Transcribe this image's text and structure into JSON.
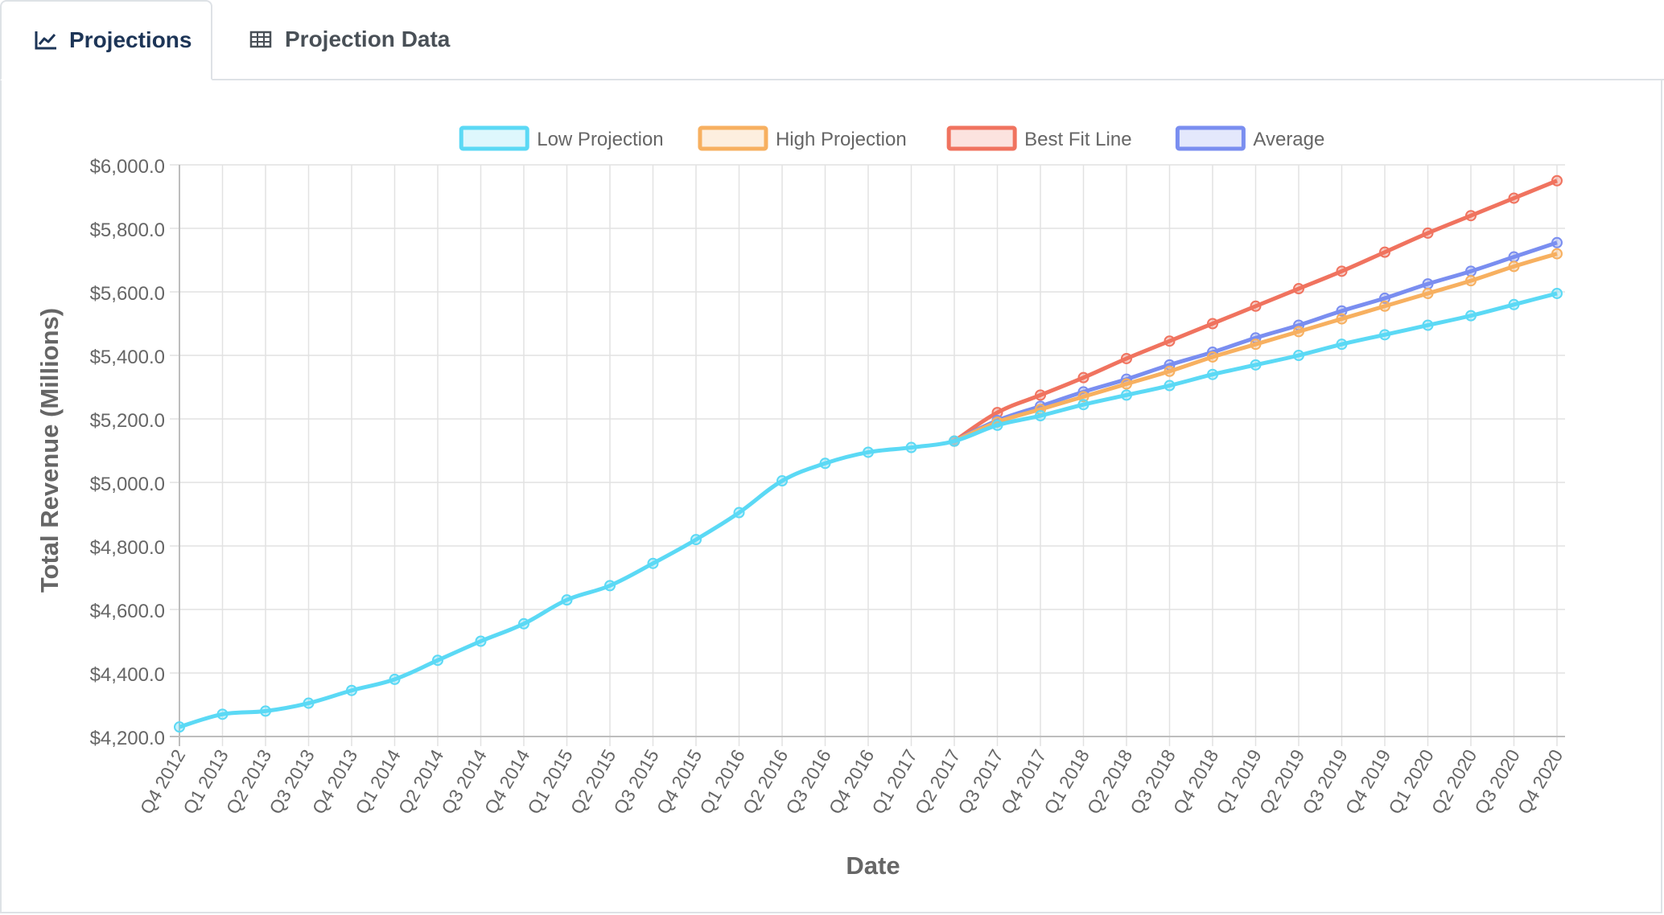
{
  "tabs": [
    {
      "label": "Projections",
      "icon": "line-chart-icon",
      "active": true
    },
    {
      "label": "Projection Data",
      "icon": "table-icon",
      "active": false
    }
  ],
  "chart_data": {
    "type": "line",
    "title": "",
    "xlabel": "Date",
    "ylabel": "Total Revenue (Millions)",
    "ylim": [
      4200,
      6000
    ],
    "yticks": [
      "$6,000.0",
      "$5,800.0",
      "$5,600.0",
      "$5,400.0",
      "$5,200.0",
      "$5,000.0",
      "$4,800.0",
      "$4,600.0",
      "$4,400.0",
      "$4,200.0"
    ],
    "ytick_values": [
      6000,
      5800,
      5600,
      5400,
      5200,
      5000,
      4800,
      4600,
      4400,
      4200
    ],
    "grid": true,
    "legend_position": "top",
    "categories": [
      "Q4 2012",
      "Q1 2013",
      "Q2 2013",
      "Q3 2013",
      "Q4 2013",
      "Q1 2014",
      "Q2 2014",
      "Q3 2014",
      "Q4 2014",
      "Q1 2015",
      "Q2 2015",
      "Q3 2015",
      "Q4 2015",
      "Q1 2016",
      "Q2 2016",
      "Q3 2016",
      "Q4 2016",
      "Q1 2017",
      "Q2 2017",
      "Q3 2017",
      "Q4 2017",
      "Q1 2018",
      "Q2 2018",
      "Q3 2018",
      "Q4 2018",
      "Q1 2019",
      "Q2 2019",
      "Q3 2019",
      "Q4 2019",
      "Q1 2020",
      "Q2 2020",
      "Q3 2020",
      "Q4 2020"
    ],
    "series": [
      {
        "name": "Best Fit Line",
        "color": "#f0735f",
        "values": [
          null,
          null,
          null,
          null,
          null,
          null,
          null,
          null,
          null,
          null,
          null,
          null,
          null,
          null,
          null,
          null,
          null,
          null,
          5130,
          5220,
          5275,
          5330,
          5390,
          5445,
          5500,
          5555,
          5610,
          5665,
          5725,
          5785,
          5840,
          5895,
          5950
        ]
      },
      {
        "name": "Average",
        "color": "#7a8ef0",
        "values": [
          null,
          null,
          null,
          null,
          null,
          null,
          null,
          null,
          null,
          null,
          null,
          null,
          null,
          null,
          null,
          null,
          null,
          null,
          5130,
          5195,
          5240,
          5285,
          5325,
          5370,
          5410,
          5455,
          5495,
          5540,
          5580,
          5625,
          5665,
          5710,
          5755
        ]
      },
      {
        "name": "High Projection",
        "color": "#f7b060",
        "values": [
          null,
          null,
          null,
          null,
          null,
          null,
          null,
          null,
          null,
          null,
          null,
          null,
          null,
          null,
          null,
          null,
          null,
          null,
          5130,
          5190,
          5230,
          5270,
          5310,
          5350,
          5395,
          5435,
          5475,
          5515,
          5555,
          5595,
          5635,
          5680,
          5720
        ]
      },
      {
        "name": "Low Projection",
        "color": "#5bd9f5",
        "values": [
          4230,
          4270,
          4280,
          4305,
          4345,
          4380,
          4440,
          4500,
          4555,
          4630,
          4675,
          4745,
          4820,
          4905,
          5005,
          5060,
          5095,
          5110,
          5130,
          5180,
          5210,
          5245,
          5275,
          5305,
          5340,
          5370,
          5400,
          5435,
          5465,
          5495,
          5525,
          5560,
          5595
        ]
      }
    ],
    "legend": [
      {
        "name": "Low Projection",
        "color": "#5bd9f5"
      },
      {
        "name": "High Projection",
        "color": "#f7b060"
      },
      {
        "name": "Best Fit Line",
        "color": "#f0735f"
      },
      {
        "name": "Average",
        "color": "#7a8ef0"
      }
    ]
  }
}
